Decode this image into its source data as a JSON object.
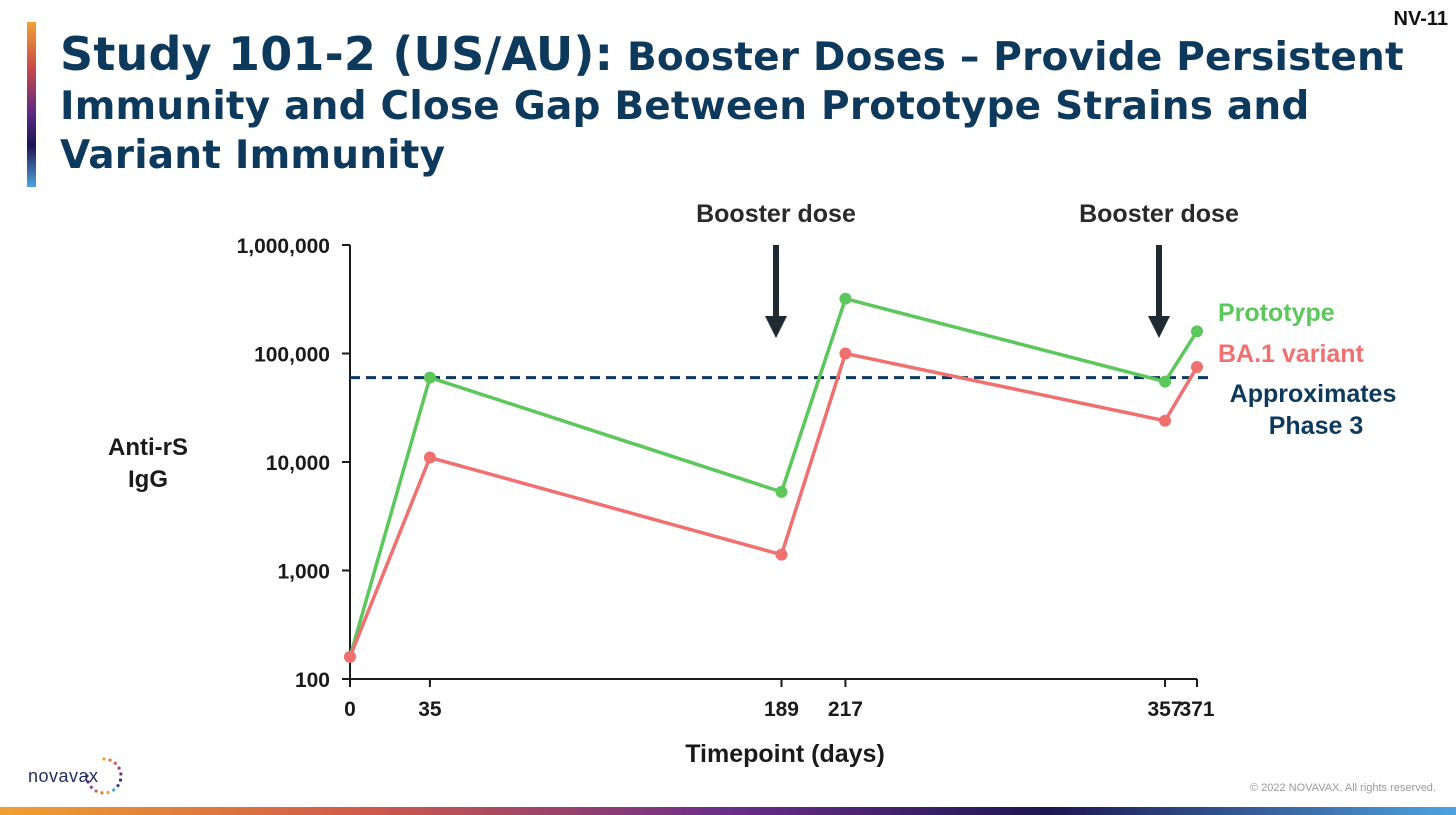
{
  "slide": {
    "title_lead": "Study 101-2 (US/AU):",
    "title_rest": " Booster Doses – Provide Persistent Immunity and Close Gap Between Prototype Strains and Variant Immunity",
    "slide_number": "NV-11",
    "logo_text": "novavax",
    "copyright": "© 2022 NOVAVAX. All rights reserved."
  },
  "colors": {
    "title": "#0d3a5c",
    "prototype": "#5cc85c",
    "ba1": "#f07070",
    "reference": "#0d3a5c",
    "axis": "#1a1a1a"
  },
  "chart_data": {
    "type": "line",
    "title": "",
    "xlabel": "Timepoint (days)",
    "ylabel": "Anti-rS IgG",
    "y_scale": "log",
    "ylim": [
      100,
      1000000
    ],
    "xlim": [
      0,
      371
    ],
    "x_ticks": [
      0,
      35,
      189,
      217,
      357,
      371
    ],
    "y_ticks": [
      {
        "value": 100,
        "label": "100"
      },
      {
        "value": 1000,
        "label": "1,000"
      },
      {
        "value": 10000,
        "label": "10,000"
      },
      {
        "value": 100000,
        "label": "100,000"
      },
      {
        "value": 1000000,
        "label": "1,000,000"
      }
    ],
    "series": [
      {
        "name": "Prototype",
        "color": "#5cc85c",
        "points": [
          {
            "x": 0,
            "y": 160
          },
          {
            "x": 35,
            "y": 60000
          },
          {
            "x": 189,
            "y": 5300
          },
          {
            "x": 217,
            "y": 320000
          },
          {
            "x": 357,
            "y": 55000
          },
          {
            "x": 371,
            "y": 160000
          }
        ]
      },
      {
        "name": "BA.1 variant",
        "color": "#f07070",
        "points": [
          {
            "x": 0,
            "y": 160
          },
          {
            "x": 35,
            "y": 11000
          },
          {
            "x": 189,
            "y": 1400
          },
          {
            "x": 217,
            "y": 100000
          },
          {
            "x": 357,
            "y": 24000
          },
          {
            "x": 371,
            "y": 75000
          }
        ]
      }
    ],
    "reference_line": {
      "y": 60000,
      "label_line1": "Approximates",
      "label_line2": "Phase 3",
      "style": "dashed"
    },
    "annotations": [
      {
        "text": "Booster dose",
        "x": 189
      },
      {
        "text": "Booster dose",
        "x": 357
      }
    ],
    "grid": false,
    "legend_placement": "right"
  }
}
